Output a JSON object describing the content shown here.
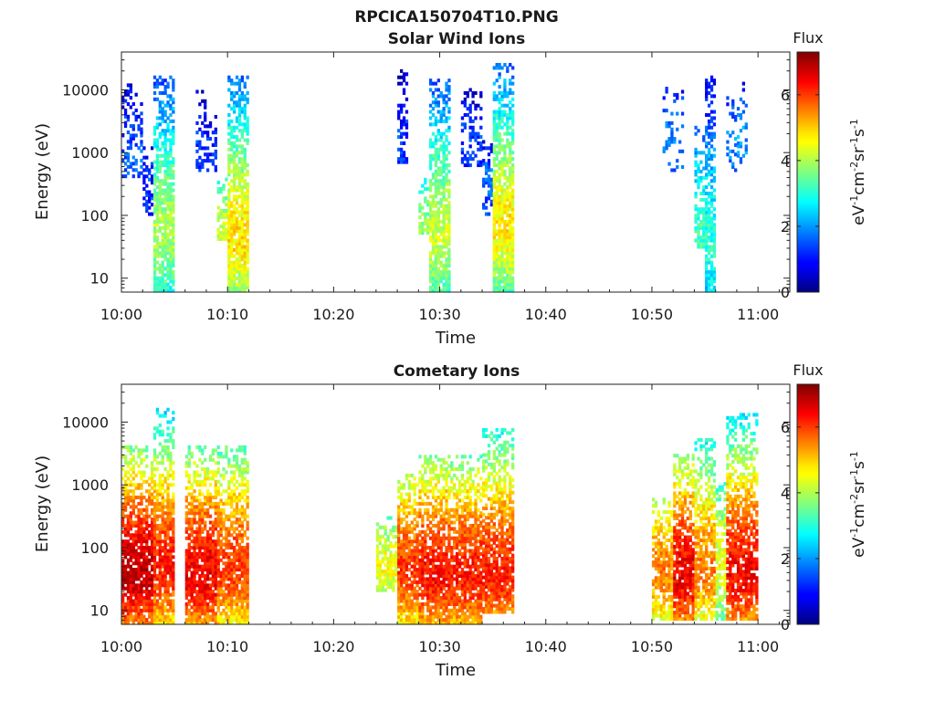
{
  "figure_title": "RPCICA150704T10.PNG",
  "chart_data": [
    {
      "type": "heatmap",
      "title": "Solar Wind Ions",
      "xlabel": "Time",
      "ylabel": "Energy (eV)",
      "xlim": [
        "10:00",
        "11:03"
      ],
      "ylim": [
        6,
        40000
      ],
      "yscale": "log",
      "x_ticks": [
        "10:00",
        "10:10",
        "10:20",
        "10:30",
        "10:40",
        "10:50",
        "11:00"
      ],
      "y_ticks": [
        "10",
        "100",
        "1000",
        "10000"
      ],
      "colorbar": {
        "label": "Flux",
        "unit": "eV-1cm-2sr-1s-1",
        "range": [
          0,
          7.3
        ],
        "ticks": [
          "0",
          "2",
          "4",
          "6"
        ],
        "colormap": "jet"
      },
      "bursts": [
        {
          "start": "10:00",
          "end": "10:02",
          "emin": 400,
          "emax": 12000,
          "epeak": 1000,
          "peak_flux": 1.6,
          "density": 0.45
        },
        {
          "start": "10:02",
          "end": "10:03",
          "emin": 100,
          "emax": 1500,
          "epeak": 500,
          "peak_flux": 1.3,
          "density": 0.5
        },
        {
          "start": "10:03",
          "end": "10:05",
          "emin": 6,
          "emax": 16000,
          "epeak": 60,
          "peak_flux": 4.0,
          "density": 0.85
        },
        {
          "start": "10:07",
          "end": "10:08",
          "emin": 500,
          "emax": 10000,
          "epeak": 2000,
          "peak_flux": 1.3,
          "density": 0.4
        },
        {
          "start": "10:08",
          "end": "10:09",
          "emin": 500,
          "emax": 4000,
          "epeak": 1500,
          "peak_flux": 1.2,
          "density": 0.35
        },
        {
          "start": "10:09",
          "end": "10:10",
          "emin": 40,
          "emax": 400,
          "epeak": 60,
          "peak_flux": 4.2,
          "density": 0.7
        },
        {
          "start": "10:10",
          "end": "10:12",
          "emin": 6,
          "emax": 16000,
          "epeak": 45,
          "peak_flux": 4.8,
          "density": 0.9
        },
        {
          "start": "10:26",
          "end": "10:27",
          "emin": 600,
          "emax": 20000,
          "epeak": 2000,
          "peak_flux": 1.3,
          "density": 0.4
        },
        {
          "start": "10:28",
          "end": "10:29",
          "emin": 50,
          "emax": 400,
          "epeak": 80,
          "peak_flux": 3.8,
          "density": 0.7
        },
        {
          "start": "10:29",
          "end": "10:31",
          "emin": 6,
          "emax": 14000,
          "epeak": 50,
          "peak_flux": 4.2,
          "density": 0.85
        },
        {
          "start": "10:32",
          "end": "10:34",
          "emin": 600,
          "emax": 10000,
          "epeak": 2000,
          "peak_flux": 1.3,
          "density": 0.45
        },
        {
          "start": "10:34",
          "end": "10:35",
          "emin": 100,
          "emax": 1500,
          "epeak": 500,
          "peak_flux": 1.6,
          "density": 0.55
        },
        {
          "start": "10:35",
          "end": "10:37",
          "emin": 6,
          "emax": 25000,
          "epeak": 70,
          "peak_flux": 4.7,
          "density": 0.9
        },
        {
          "start": "10:51",
          "end": "10:53",
          "emin": 500,
          "emax": 12000,
          "epeak": 2000,
          "peak_flux": 1.8,
          "density": 0.25
        },
        {
          "start": "10:54",
          "end": "10:55",
          "emin": 30,
          "emax": 3000,
          "epeak": 60,
          "peak_flux": 3.2,
          "density": 0.6
        },
        {
          "start": "10:55",
          "end": "10:56",
          "emin": 6,
          "emax": 16000,
          "epeak": 40,
          "peak_flux": 3.0,
          "density": 0.8
        },
        {
          "start": "10:57",
          "end": "10:58",
          "emin": 500,
          "emax": 10000,
          "epeak": 2000,
          "peak_flux": 1.9,
          "density": 0.3
        },
        {
          "start": "10:58",
          "end": "10:59",
          "emin": 600,
          "emax": 12000,
          "epeak": 2000,
          "peak_flux": 2.0,
          "density": 0.35
        }
      ]
    },
    {
      "type": "heatmap",
      "title": "Cometary Ions",
      "xlabel": "Time",
      "ylabel": "Energy (eV)",
      "xlim": [
        "10:00",
        "11:03"
      ],
      "ylim": [
        6,
        40000
      ],
      "yscale": "log",
      "x_ticks": [
        "10:00",
        "10:10",
        "10:20",
        "10:30",
        "10:40",
        "10:50",
        "11:00"
      ],
      "y_ticks": [
        "10",
        "100",
        "1000",
        "10000"
      ],
      "colorbar": {
        "label": "Flux",
        "unit": "eV-1cm-2sr-1s-1",
        "range": [
          0,
          7.3
        ],
        "ticks": [
          "0",
          "2",
          "4",
          "6"
        ],
        "colormap": "jet"
      },
      "bursts": [
        {
          "start": "10:00",
          "end": "10:03",
          "emin": 6,
          "emax": 4000,
          "epeak": 40,
          "peak_flux": 6.8,
          "density": 0.9
        },
        {
          "start": "10:03",
          "end": "10:05",
          "emin": 6,
          "emax": 16000,
          "epeak": 50,
          "peak_flux": 6.2,
          "density": 0.85
        },
        {
          "start": "10:06",
          "end": "10:09",
          "emin": 6,
          "emax": 4000,
          "epeak": 40,
          "peak_flux": 6.5,
          "density": 0.9
        },
        {
          "start": "10:09",
          "end": "10:12",
          "emin": 6,
          "emax": 4000,
          "epeak": 50,
          "peak_flux": 6.0,
          "density": 0.88
        },
        {
          "start": "10:24",
          "end": "10:26",
          "emin": 20,
          "emax": 300,
          "epeak": 60,
          "peak_flux": 4.5,
          "density": 0.8
        },
        {
          "start": "10:26",
          "end": "10:28",
          "emin": 6,
          "emax": 1500,
          "epeak": 50,
          "peak_flux": 6.0,
          "density": 0.88
        },
        {
          "start": "10:28",
          "end": "10:31",
          "emin": 6,
          "emax": 3000,
          "epeak": 40,
          "peak_flux": 6.3,
          "density": 0.88
        },
        {
          "start": "10:31",
          "end": "10:34",
          "emin": 6,
          "emax": 3000,
          "epeak": 40,
          "peak_flux": 6.2,
          "density": 0.88
        },
        {
          "start": "10:34",
          "end": "10:37",
          "emin": 9,
          "emax": 8000,
          "epeak": 40,
          "peak_flux": 6.2,
          "density": 0.88
        },
        {
          "start": "10:50",
          "end": "10:52",
          "emin": 7,
          "emax": 600,
          "epeak": 50,
          "peak_flux": 5.5,
          "density": 0.8
        },
        {
          "start": "10:52",
          "end": "10:54",
          "emin": 7,
          "emax": 3000,
          "epeak": 40,
          "peak_flux": 6.5,
          "density": 0.85
        },
        {
          "start": "10:54",
          "end": "10:56",
          "emin": 7,
          "emax": 5000,
          "epeak": 50,
          "peak_flux": 5.5,
          "density": 0.8
        },
        {
          "start": "10:56",
          "end": "10:57",
          "emin": 7,
          "emax": 1000,
          "epeak": 60,
          "peak_flux": 4.5,
          "density": 0.7
        },
        {
          "start": "10:57",
          "end": "11:00",
          "emin": 7,
          "emax": 13000,
          "epeak": 40,
          "peak_flux": 6.4,
          "density": 0.85
        }
      ]
    }
  ]
}
